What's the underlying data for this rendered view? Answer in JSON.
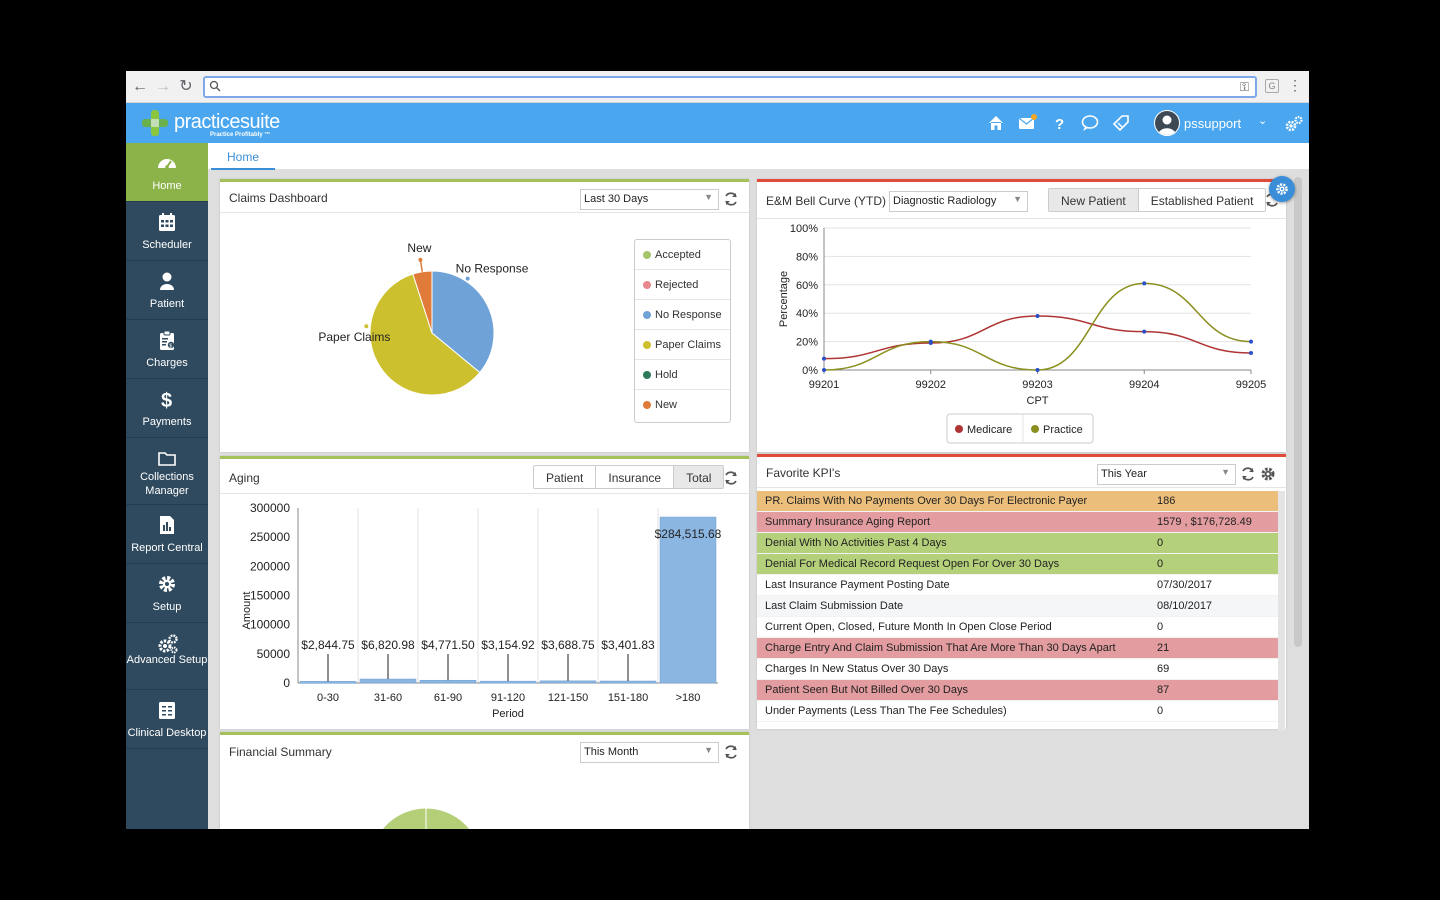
{
  "browser": {
    "url": ""
  },
  "app": {
    "brand": "practicesuite",
    "tagline": "Practice Profitably ™",
    "username": "pssupport"
  },
  "sidebar": {
    "items": [
      {
        "label": "Home",
        "icon": "dashboard-icon"
      },
      {
        "label": "Scheduler",
        "icon": "calendar-icon"
      },
      {
        "label": "Patient",
        "icon": "person-icon"
      },
      {
        "label": "Charges",
        "icon": "clipboard-icon"
      },
      {
        "label": "Payments",
        "icon": "dollar-icon"
      },
      {
        "label": "Collections Manager",
        "icon": "folder-icon"
      },
      {
        "label": "Report Central",
        "icon": "report-icon"
      },
      {
        "label": "Setup",
        "icon": "gear-icon"
      },
      {
        "label": "Advanced Setup",
        "icon": "gears-icon"
      },
      {
        "label": "Clinical Desktop",
        "icon": "clinical-icon"
      }
    ]
  },
  "tabs": {
    "home": "Home"
  },
  "claims": {
    "title": "Claims Dashboard",
    "period": "Last 30 Days",
    "legend": [
      "Accepted",
      "Rejected",
      "No Response",
      "Paper Claims",
      "Hold",
      "New"
    ],
    "labels": {
      "new": "New",
      "no_response": "No Response",
      "paper": "Paper Claims"
    }
  },
  "em": {
    "title": "E&M Bell Curve (YTD)",
    "specialty": "Diagnostic Radiology",
    "btn_new": "New Patient",
    "btn_established": "Established Patient",
    "legend_medicare": "Medicare",
    "legend_practice": "Practice"
  },
  "aging": {
    "title": "Aging",
    "btn_patient": "Patient",
    "btn_insurance": "Insurance",
    "btn_total": "Total"
  },
  "kpi": {
    "title": "Favorite KPI's",
    "period": "This Year",
    "rows": [
      {
        "name": "PR. Claims With No Payments Over 30 Days For Electronic Payer",
        "value": "186",
        "color": "orange"
      },
      {
        "name": "Summary Insurance Aging Report",
        "value": "1579 , $176,728.49",
        "color": "pink"
      },
      {
        "name": "Denial With No Activities Past 4 Days",
        "value": "0",
        "color": "lgreen"
      },
      {
        "name": "Denial For Medical Record Request Open For Over 30 Days",
        "value": "0",
        "color": "lgreen"
      },
      {
        "name": "Last Insurance Payment Posting Date",
        "value": "07/30/2017",
        "color": "white"
      },
      {
        "name": "Last Claim Submission Date",
        "value": "08/10/2017",
        "color": "alt"
      },
      {
        "name": "Current Open, Closed, Future Month In Open Close Period",
        "value": "0",
        "color": "white"
      },
      {
        "name": "Charge Entry And Claim Submission That Are More Than 30 Days Apart",
        "value": "21",
        "color": "pink"
      },
      {
        "name": "Charges In New Status Over 30 Days",
        "value": "69",
        "color": "white"
      },
      {
        "name": "Patient Seen But Not Billed Over 30 Days",
        "value": "87",
        "color": "pink"
      },
      {
        "name": "Under Payments (Less Than The Fee Schedules)",
        "value": "0",
        "color": "white"
      }
    ]
  },
  "financial": {
    "title": "Financial Summary",
    "period": "This Month"
  },
  "chart_data": [
    {
      "type": "pie",
      "title": "Claims Dashboard",
      "slices": [
        {
          "name": "No Response",
          "value": 36,
          "color": "#6fa3d8"
        },
        {
          "name": "Paper Claims",
          "value": 59,
          "color": "#ccc02e"
        },
        {
          "name": "New",
          "value": 5,
          "color": "#e07b39"
        }
      ],
      "legend": [
        {
          "name": "Accepted",
          "color": "#a6c46a"
        },
        {
          "name": "Rejected",
          "color": "#e8878e"
        },
        {
          "name": "No Response",
          "color": "#6fa3d8"
        },
        {
          "name": "Paper Claims",
          "color": "#ccc02e"
        },
        {
          "name": "Hold",
          "color": "#2d7a5a"
        },
        {
          "name": "New",
          "color": "#e07b39"
        }
      ]
    },
    {
      "type": "line",
      "title": "E&M Bell Curve (YTD)",
      "xlabel": "CPT",
      "ylabel": "Percentage",
      "categories": [
        "99201",
        "99202",
        "99203",
        "99204",
        "99205"
      ],
      "yticks": [
        "0%",
        "20%",
        "40%",
        "60%",
        "80%",
        "100%"
      ],
      "ylim": [
        0,
        100
      ],
      "series": [
        {
          "name": "Medicare",
          "color": "#b03434",
          "values": [
            8,
            19,
            38,
            27,
            12
          ]
        },
        {
          "name": "Practice",
          "color": "#8a8f1e",
          "values": [
            0,
            20,
            0,
            61,
            20
          ]
        }
      ]
    },
    {
      "type": "bar",
      "title": "Aging",
      "xlabel": "Period",
      "ylabel": "Amount",
      "categories": [
        "0-30",
        "31-60",
        "61-90",
        "91-120",
        "121-150",
        "151-180",
        ">180"
      ],
      "values": [
        2844.75,
        6820.98,
        4771.5,
        3154.92,
        3688.75,
        3401.83,
        284515.68
      ],
      "data_labels": [
        "$2,844.75",
        "$6,820.98",
        "$4,771.50",
        "$3,154.92",
        "$3,688.75",
        "$3,401.83",
        "$284,515.68"
      ],
      "yticks": [
        "0",
        "50000",
        "100000",
        "150000",
        "200000",
        "250000",
        "300000"
      ],
      "ylim": [
        0,
        300000
      ],
      "color": "#8cb6e2"
    },
    {
      "type": "pie",
      "title": "Financial Summary",
      "slices": [
        {
          "name": "",
          "value": 50,
          "color": "#b5cf78"
        },
        {
          "name": "",
          "value": 50,
          "color": "#b5cf78"
        }
      ]
    }
  ]
}
